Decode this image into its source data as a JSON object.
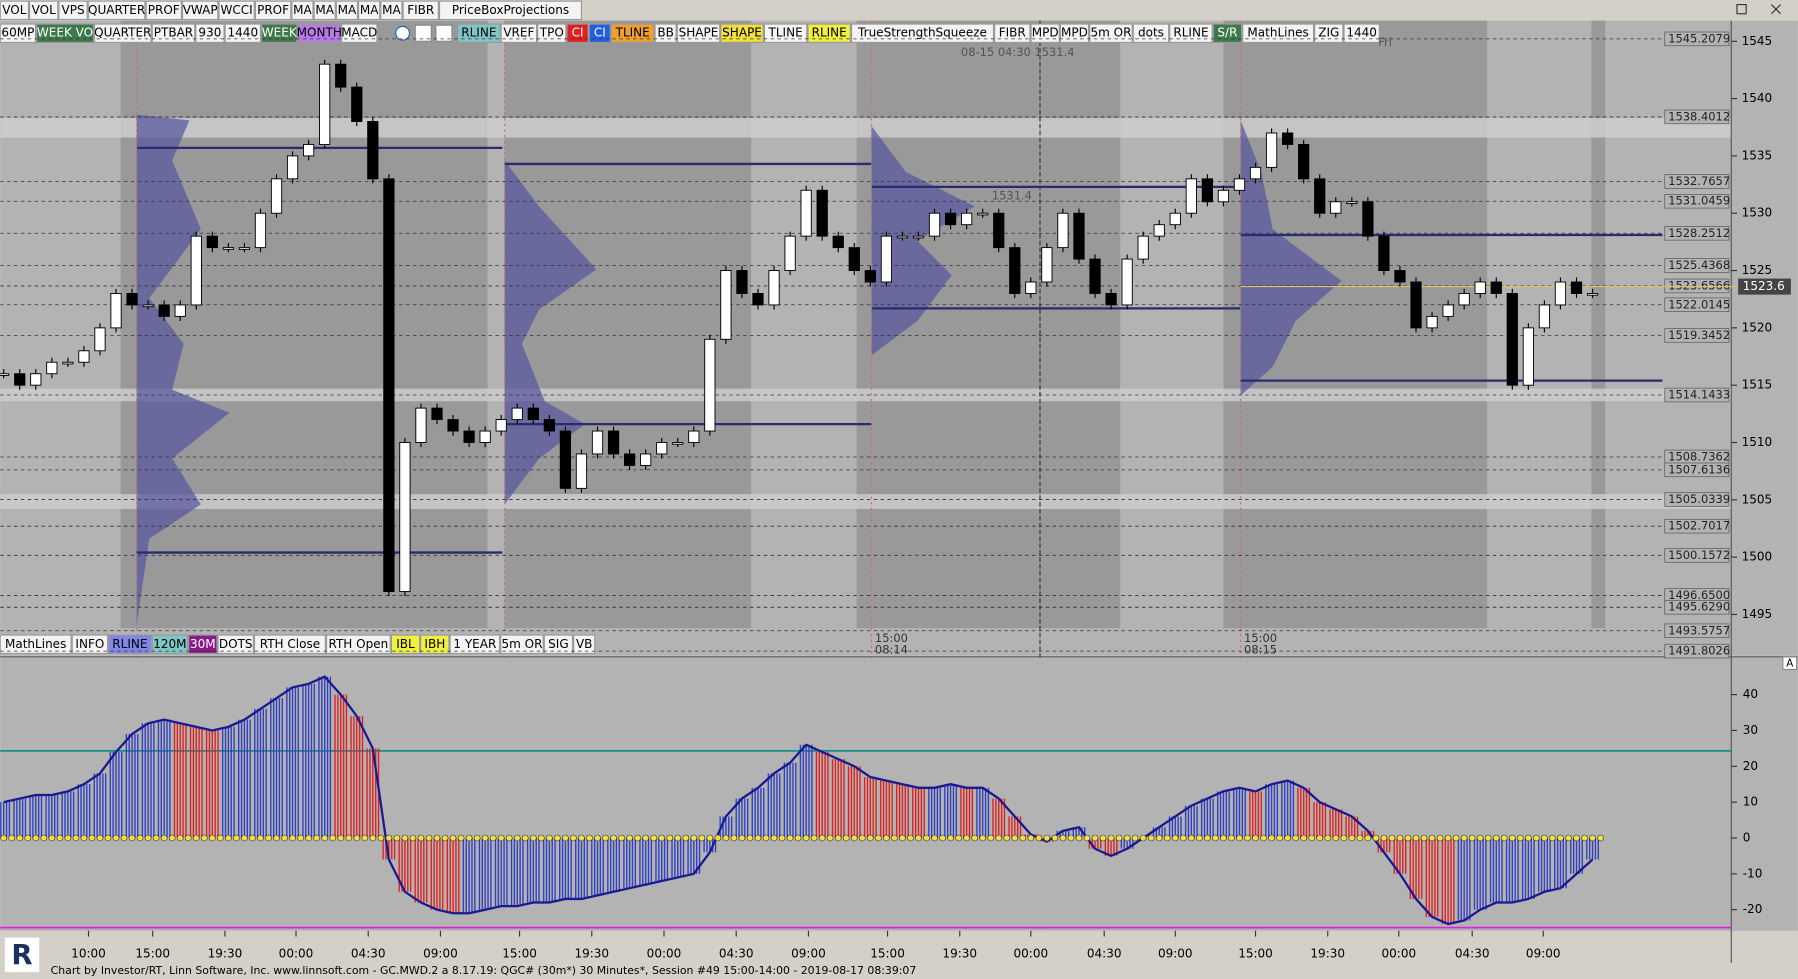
{
  "toolbar_top": [
    {
      "label": "VOL"
    },
    {
      "label": "VOL"
    },
    {
      "label": "VPS"
    },
    {
      "label": "QUARTER"
    },
    {
      "label": "PROF"
    },
    {
      "label": "VWAP"
    },
    {
      "label": "WCCI"
    },
    {
      "label": "PROF"
    },
    {
      "label": "MA"
    },
    {
      "label": "MA"
    },
    {
      "label": "MA"
    },
    {
      "label": "MA"
    },
    {
      "label": "MA"
    },
    {
      "label": "FIBR"
    },
    {
      "label": "PriceBoxProjections"
    }
  ],
  "toolbar_left": [
    {
      "label": "60MP"
    },
    {
      "label": "WEEK VO",
      "color": "#3d7a4b",
      "text": "#ffffff"
    },
    {
      "label": "QUARTER"
    },
    {
      "label": "PTBAR"
    },
    {
      "label": "930"
    },
    {
      "label": "1440"
    },
    {
      "label": "WEEK",
      "color": "#3d7a4b",
      "text": "#ffffff"
    },
    {
      "label": "MONTH",
      "color": "#b77ae6"
    },
    {
      "label": "MACD"
    }
  ],
  "toolbar_right": [
    {
      "label": "RLINE",
      "color": "#7fc6c6"
    },
    {
      "label": "VREF"
    },
    {
      "label": "TPO"
    },
    {
      "label": "CI",
      "color": "#e02020",
      "text": "#ffffff"
    },
    {
      "label": "CI",
      "color": "#2060e0",
      "text": "#ffffff"
    },
    {
      "label": "TLINE",
      "color": "#f0a030"
    },
    {
      "label": "BB"
    },
    {
      "label": "SHAPE"
    },
    {
      "label": "SHAPE",
      "color": "#f0e040"
    },
    {
      "label": "TLINE"
    },
    {
      "label": "RLINE",
      "color": "#f0f040"
    },
    {
      "label": "TrueStrengthSqueeze"
    },
    {
      "label": "FIBR"
    },
    {
      "label": "MPD"
    },
    {
      "label": "MPD"
    },
    {
      "label": "5m OR"
    },
    {
      "label": "dots"
    },
    {
      "label": "RLINE"
    },
    {
      "label": "S/R",
      "color": "#3d7a4b",
      "text": "#ffffff"
    },
    {
      "label": "MathLines"
    },
    {
      "label": "ZIG"
    },
    {
      "label": "1440"
    }
  ],
  "toolbar_bottom": [
    {
      "label": "MathLines"
    },
    {
      "label": "INFO"
    },
    {
      "label": "RLINE",
      "color": "#7f86e6"
    },
    {
      "label": "120M",
      "color": "#7fc6c6"
    },
    {
      "label": "30M",
      "color": "#8a1a8a",
      "text": "#ffffff"
    },
    {
      "label": "DOTS"
    },
    {
      "label": "RTH Close"
    },
    {
      "label": "RTH Open"
    },
    {
      "label": "IBL",
      "color": "#f0f040"
    },
    {
      "label": "IBH",
      "color": "#f0f040"
    },
    {
      "label": "1 YEAR"
    },
    {
      "label": "5m OR"
    },
    {
      "label": "SIG"
    },
    {
      "label": "VB"
    }
  ],
  "chart_data": {
    "type": "candlestick",
    "closes": [
      1516,
      1515,
      1516,
      1517,
      1517,
      1518,
      1520,
      1523,
      1522,
      1522,
      1521,
      1522,
      1528,
      1527,
      1527,
      1527,
      1530,
      1533,
      1535,
      1536,
      1543,
      1541,
      1538,
      1533,
      1497,
      1510,
      1513,
      1512,
      1511,
      1510,
      1511,
      1512,
      1513,
      1512,
      1511,
      1506,
      1509,
      1511,
      1509,
      1508,
      1509,
      1510,
      1510,
      1511,
      1519,
      1525,
      1523,
      1522,
      1525,
      1528,
      1532,
      1528,
      1527,
      1525,
      1524,
      1528,
      1528,
      1528,
      1530,
      1529,
      1530,
      1530,
      1527,
      1523,
      1524,
      1527,
      1530,
      1526,
      1523,
      1522,
      1526,
      1528,
      1529,
      1530,
      1533,
      1531,
      1532,
      1533,
      1534,
      1537,
      1536,
      1533,
      1530,
      1531,
      1531,
      1528,
      1525,
      1524,
      1520,
      1521,
      1522,
      1523,
      1524,
      1523,
      1515,
      1520,
      1522,
      1524,
      1523,
      1523
    ],
    "ylim": [
      1491.4,
      1546.8
    ],
    "yticks": [
      1545,
      1540,
      1535,
      1530,
      1525,
      1520,
      1515,
      1510,
      1505,
      1500,
      1495
    ],
    "price_labels": [
      1545.2079,
      1538.4012,
      1532.7657,
      1531.0459,
      1528.2512,
      1525.4368,
      1523.6566,
      1522.0145,
      1519.3452,
      1514.1433,
      1508.7362,
      1507.6136,
      1505.0339,
      1502.7017,
      1500.1572,
      {
        "value": 1496.65,
        "label": "1496.6500"
      },
      1495.629,
      {
        "value": 1495.629,
        "label": "1495.6290"
      },
      1493.5757,
      1491.8026
    ],
    "last_price": 1523.6,
    "x_labels": [
      "10:00",
      "15:00",
      "19:30",
      "00:00",
      "04:30",
      "09:00",
      "15:00",
      "19:30",
      "00:00",
      "04:30",
      "09:00",
      "15:00",
      "19:30",
      "00:00",
      "04:30",
      "09:00",
      "15:00",
      "19:30",
      "00:00",
      "04:30",
      "09:00"
    ],
    "annotations": [
      "08-15 04:30  1531.4",
      "1531.4",
      "Fri",
      "15:00",
      "08:14",
      "15:00",
      "08:15"
    ]
  },
  "indicator": {
    "type": "histogram",
    "values": [
      10,
      11,
      12,
      12,
      13,
      15,
      18,
      24,
      29,
      32,
      33,
      32,
      31,
      30,
      31,
      33,
      36,
      39,
      42,
      43,
      45,
      40,
      34,
      25,
      -6,
      -15,
      -18,
      -20,
      -21,
      -21,
      -20,
      -19,
      -19,
      -18,
      -18,
      -17,
      -17,
      -16,
      -15,
      -14,
      -13,
      -12,
      -11,
      -10,
      -4,
      6,
      11,
      14,
      18,
      21,
      26,
      24,
      22,
      20,
      17,
      16,
      15,
      14,
      14,
      15,
      14,
      14,
      11,
      6,
      1,
      -1,
      2,
      3,
      -3,
      -5,
      -3,
      0,
      3,
      6,
      9,
      11,
      13,
      14,
      13,
      15,
      16,
      14,
      10,
      8,
      6,
      2,
      -4,
      -10,
      -17,
      -22,
      -24,
      -23,
      -20,
      -18,
      -18,
      -17,
      -15,
      -14,
      -10,
      -6
    ],
    "ylim": [
      -25.9,
      50.2
    ],
    "yticks": [
      40,
      30,
      20,
      10,
      0,
      -10,
      -20
    ],
    "levels": [
      24.3,
      -25
    ],
    "pane_marker": "A"
  },
  "footer": {
    "logo": "R",
    "text": "Chart by Investor/RT, Linn Software, Inc. www.linnsoft.com - GC.MWD.2 a  8.17.19: QGC# (30m*) 30 Minutes*, Session #49 15:00-14:00 - 2019-08-17 08:39:07"
  }
}
